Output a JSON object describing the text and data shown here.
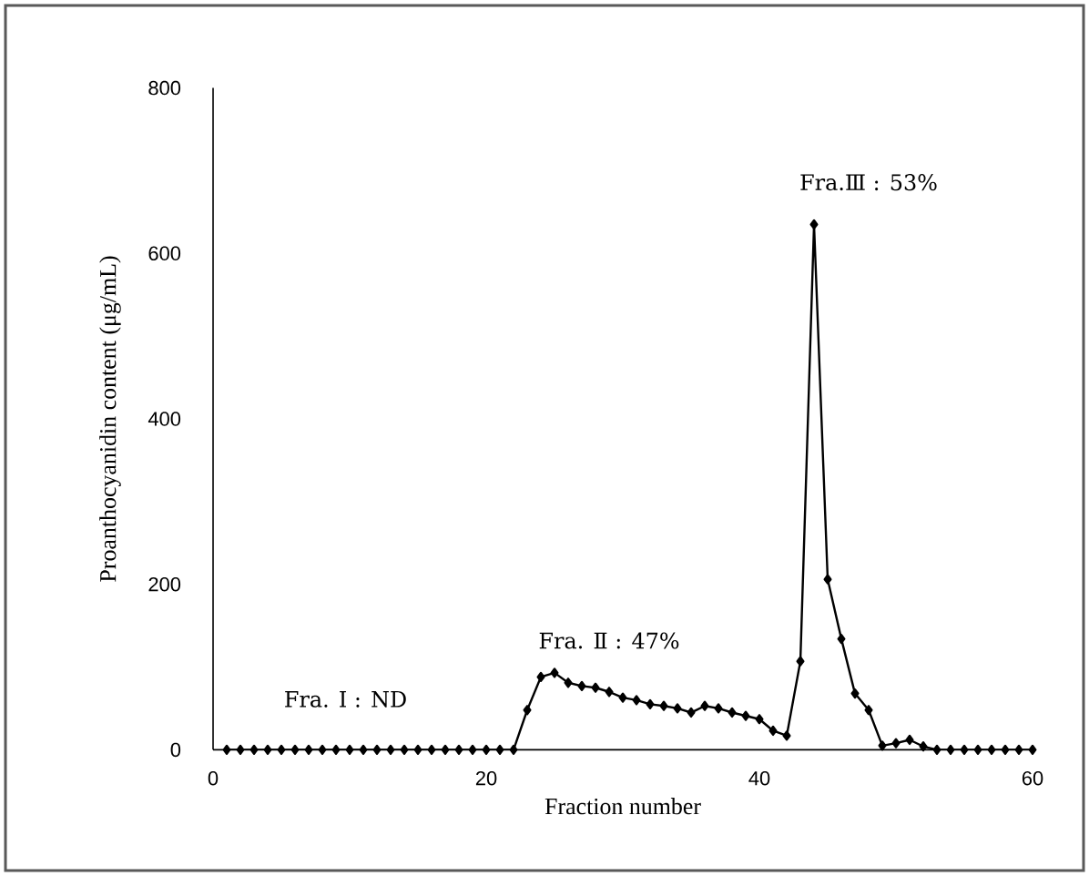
{
  "chart_data": {
    "type": "line",
    "xlabel": "Fraction number",
    "ylabel": "Proanthocyanidin content (μg/mL)",
    "x": [
      1,
      2,
      3,
      4,
      5,
      6,
      7,
      8,
      9,
      10,
      11,
      12,
      13,
      14,
      15,
      16,
      17,
      18,
      19,
      20,
      21,
      22,
      23,
      24,
      25,
      26,
      27,
      28,
      29,
      30,
      31,
      32,
      33,
      34,
      35,
      36,
      37,
      38,
      39,
      40,
      41,
      42,
      43,
      44,
      45,
      46,
      47,
      48,
      49,
      50,
      51,
      52,
      53,
      54,
      55,
      56,
      57,
      58,
      59,
      60
    ],
    "series": [
      {
        "color": "#000000",
        "values": [
          0,
          0,
          0,
          0,
          0,
          0,
          0,
          0,
          0,
          0,
          0,
          0,
          0,
          0,
          0,
          0,
          0,
          0,
          0,
          0,
          0,
          0,
          48,
          88,
          93,
          81,
          77,
          75,
          70,
          63,
          60,
          55,
          53,
          50,
          45,
          53,
          50,
          45,
          41,
          37,
          23,
          17,
          107,
          635,
          206,
          134,
          68,
          48,
          5,
          8,
          12,
          4,
          0,
          0,
          0,
          0,
          0,
          0,
          0,
          0
        ]
      }
    ],
    "xlim": [
      0,
      60
    ],
    "xticks": [
      0,
      20,
      40,
      60
    ],
    "ylim": [
      0,
      800
    ],
    "yticks": [
      0,
      200,
      400,
      600,
      800
    ],
    "grid": false,
    "marker": "diamond",
    "line_style": "solid",
    "annotations": [
      "Fra. Ⅰ : ND",
      "Fra. Ⅱ : 47%",
      "Fra.Ⅲ : 53%"
    ]
  }
}
